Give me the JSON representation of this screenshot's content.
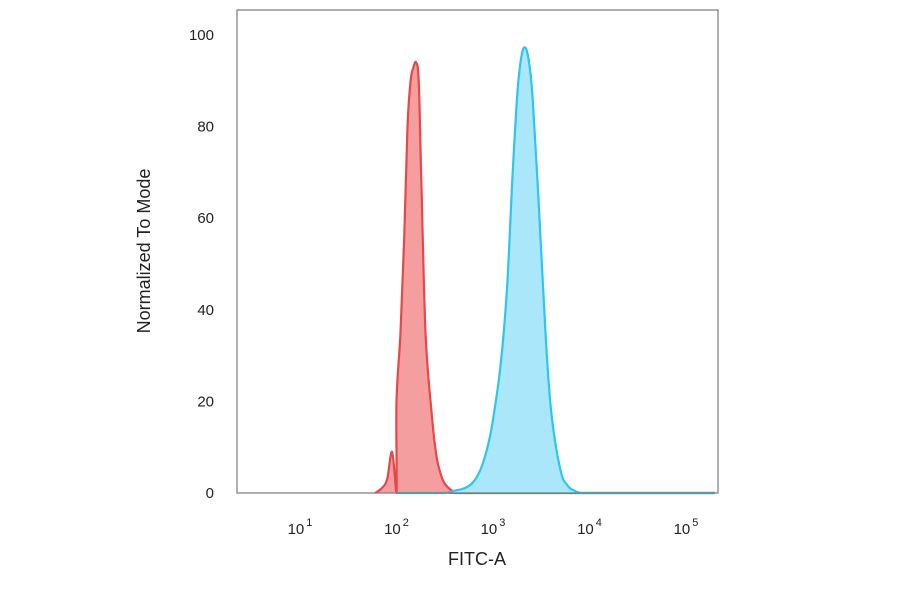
{
  "chart_data": {
    "type": "area",
    "title": "",
    "xlabel": "FITC-A",
    "ylabel": "Normalized To Mode",
    "x_scale": "log",
    "xlim": [
      100,
      200000
    ],
    "ylim": [
      0,
      105
    ],
    "x_ticks": [
      {
        "value": 10,
        "base": "10",
        "exp": "1"
      },
      {
        "value": 100,
        "base": "10",
        "exp": "2"
      },
      {
        "value": 1000,
        "base": "10",
        "exp": "3"
      },
      {
        "value": 10000,
        "base": "10",
        "exp": "4"
      },
      {
        "value": 100000,
        "base": "10",
        "exp": "5"
      }
    ],
    "y_ticks": [
      {
        "value": 0,
        "label": "0"
      },
      {
        "value": 20,
        "label": "20"
      },
      {
        "value": 40,
        "label": "40"
      },
      {
        "value": 60,
        "label": "60"
      },
      {
        "value": 80,
        "label": "80"
      },
      {
        "value": 100,
        "label": "100"
      }
    ],
    "grid": false,
    "legend": "none",
    "series": [
      {
        "color": "#e8474a",
        "fill": "#f4999a",
        "x": [
          100,
          28000,
          60,
          70,
          80,
          90,
          100,
          110,
          120,
          130,
          140,
          150,
          160,
          170,
          180,
          200,
          230,
          260,
          300,
          350,
          400,
          500,
          200000
        ],
        "y": [
          0,
          0,
          0,
          1,
          3,
          9,
          20,
          35,
          55,
          80,
          90,
          93,
          94,
          90,
          70,
          35,
          18,
          8,
          3,
          1,
          0.3,
          0,
          0
        ]
      },
      {
        "color": "#2ec5ee",
        "fill": "#a5e6fa",
        "x": [
          100,
          300,
          400,
          500,
          600,
          700,
          800,
          900,
          1000,
          1200,
          1400,
          1600,
          1800,
          2000,
          2200,
          2400,
          2600,
          3000,
          3500,
          4000,
          5000,
          6000,
          7000,
          8000,
          10000,
          200000
        ],
        "y": [
          0,
          0,
          0.5,
          1,
          2,
          4,
          7,
          11,
          16,
          28,
          45,
          70,
          88,
          96,
          97,
          93,
          85,
          62,
          35,
          18,
          5,
          1.5,
          0.5,
          0,
          0,
          0
        ]
      }
    ]
  }
}
